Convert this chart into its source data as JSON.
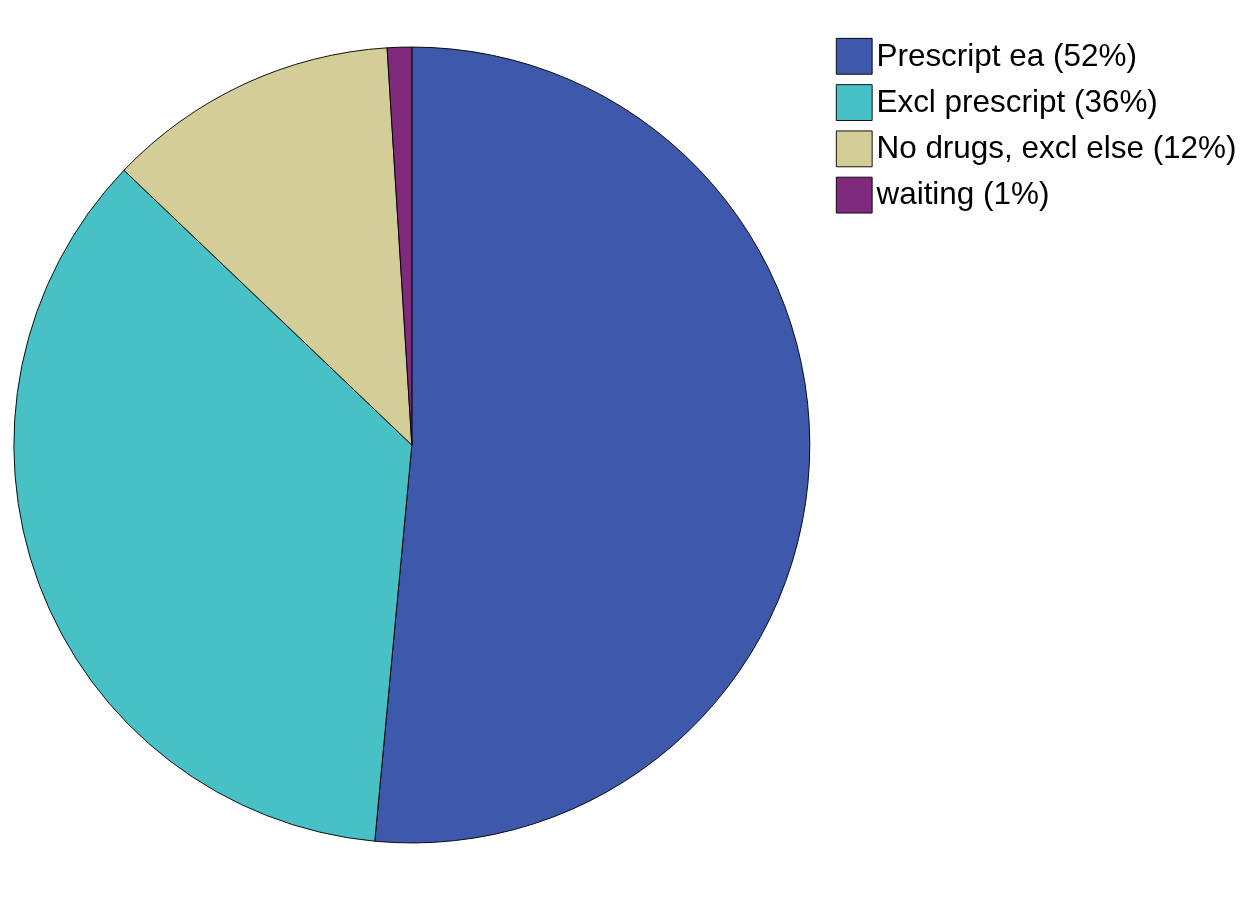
{
  "chart_data": {
    "type": "pie",
    "categories": [
      "Prescript ea (52%)",
      "Excl prescript (36%)",
      "No drugs, excl else (12%)",
      "waiting (1%)"
    ],
    "values": [
      52,
      36,
      12,
      1
    ],
    "colors": [
      "#3e58ac",
      "#48c1c6",
      "#d3ce97",
      "#7f2a7d"
    ],
    "legend": "top right"
  }
}
